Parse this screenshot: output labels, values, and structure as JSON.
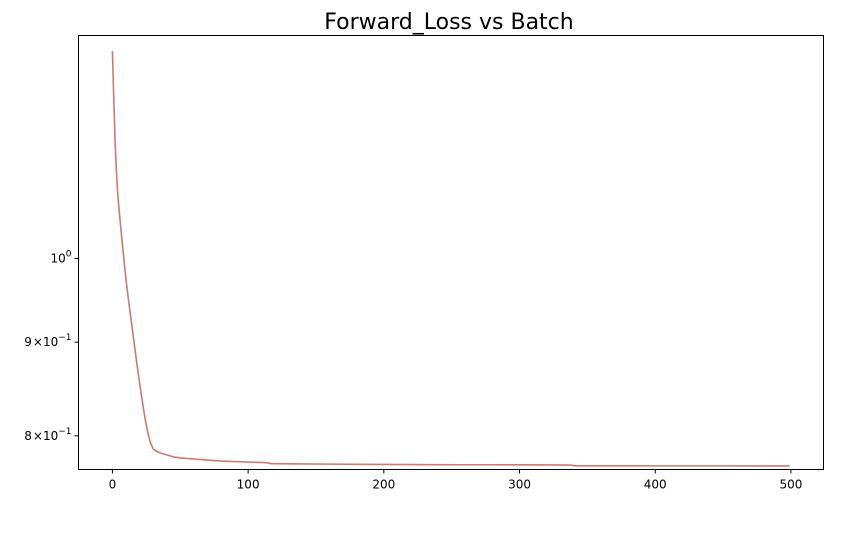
{
  "chart_data": {
    "type": "line",
    "title": "Forward_Loss vs Batch",
    "xlabel": "",
    "ylabel": "",
    "x_range": [
      -25,
      524
    ],
    "y_range": [
      0.7668,
      1.3237
    ],
    "y_scale": "log",
    "grid": false,
    "legend": "none",
    "x_ticks": [
      {
        "value": 0,
        "label": "0"
      },
      {
        "value": 100,
        "label": "100"
      },
      {
        "value": 200,
        "label": "200"
      },
      {
        "value": 300,
        "label": "300"
      },
      {
        "value": 400,
        "label": "400"
      },
      {
        "value": 500,
        "label": "500"
      }
    ],
    "y_ticks": [
      {
        "value": 1.0,
        "base": "10",
        "exp": "0",
        "coef": ""
      },
      {
        "value": 0.9,
        "base": "10",
        "exp": "−1",
        "coef": "9"
      },
      {
        "value": 0.8,
        "base": "10",
        "exp": "−1",
        "coef": "8"
      }
    ],
    "series": [
      {
        "color": "#cd7a72",
        "x": [
          0,
          1,
          2,
          3,
          4,
          5,
          6,
          7,
          8,
          9,
          10,
          12,
          14,
          16,
          18,
          20,
          22,
          24,
          26,
          28,
          30,
          32,
          35,
          40,
          45,
          50,
          60,
          70,
          80,
          90,
          100,
          110,
          115,
          116,
          120,
          140,
          160,
          180,
          200,
          220,
          240,
          260,
          280,
          300,
          320,
          338,
          340,
          341,
          350,
          400,
          450,
          499
        ],
        "y": [
          1.298,
          1.222,
          1.157,
          1.114,
          1.083,
          1.061,
          1.042,
          1.024,
          1.007,
          0.99,
          0.974,
          0.947,
          0.923,
          0.899,
          0.876,
          0.855,
          0.836,
          0.818,
          0.804,
          0.793,
          0.787,
          0.785,
          0.783,
          0.781,
          0.779,
          0.778,
          0.777,
          0.776,
          0.775,
          0.7745,
          0.774,
          0.7736,
          0.7732,
          0.7725,
          0.7724,
          0.7722,
          0.772,
          0.7718,
          0.7717,
          0.7716,
          0.7715,
          0.7714,
          0.7714,
          0.7713,
          0.7712,
          0.7711,
          0.7705,
          0.7704,
          0.7704,
          0.7703,
          0.7703,
          0.7702
        ]
      }
    ]
  }
}
